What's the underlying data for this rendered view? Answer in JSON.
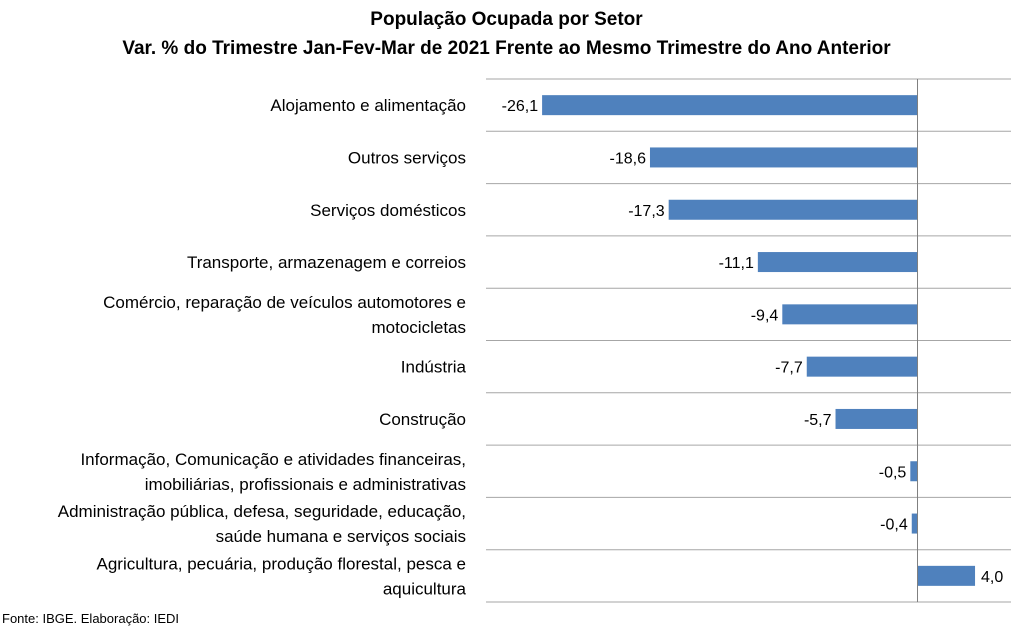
{
  "chart_data": {
    "type": "bar",
    "orientation": "horizontal",
    "title": "População Ocupada por Setor",
    "subtitle": "Var. % do Trimestre Jan-Fev-Mar de 2021 Frente ao Mesmo Trimestre do Ano Anterior",
    "categories": [
      [
        "Alojamento e alimentação"
      ],
      [
        "Outros serviços"
      ],
      [
        "Serviços domésticos"
      ],
      [
        "Transporte, armazenagem e correios"
      ],
      [
        "Comércio, reparação de veículos automotores e",
        "motocicletas"
      ],
      [
        "Indústria"
      ],
      [
        "Construção"
      ],
      [
        "Informação, Comunicação e atividades financeiras,",
        "imobiliárias, profissionais e administrativas"
      ],
      [
        "Administração pública, defesa, seguridade, educação,",
        "saúde humana e serviços sociais"
      ],
      [
        "Agricultura, pecuária, produção florestal, pesca e",
        "aquicultura"
      ]
    ],
    "values": [
      -26.1,
      -18.6,
      -17.3,
      -11.1,
      -9.4,
      -7.7,
      -5.7,
      -0.5,
      -0.4,
      4.0
    ],
    "value_labels": [
      "-26,1",
      "-18,6",
      "-17,3",
      "-11,1",
      "-9,4",
      "-7,7",
      "-5,7",
      "-0,5",
      "-0,4",
      "4,0"
    ],
    "xlim": [
      -30,
      6.5
    ],
    "grid": "horizontal separators",
    "bar_color": "#4f81bd",
    "grid_color": "#a6a6a6"
  },
  "source": "Fonte: IBGE. Elaboração: IEDI"
}
